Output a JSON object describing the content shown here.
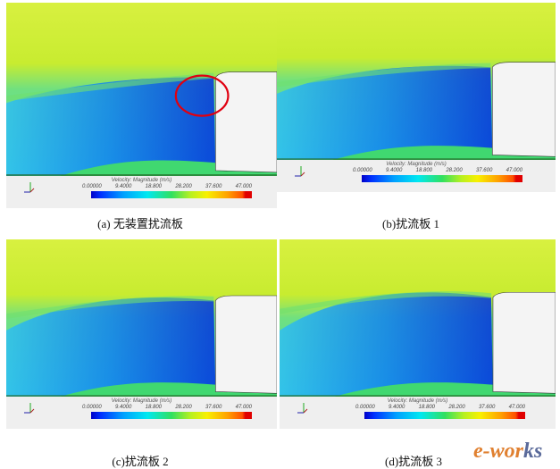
{
  "legend": {
    "title": "Velocity: Magnitude (m/s)",
    "ticks": [
      "0.00000",
      "9.4000",
      "18.800",
      "28.200",
      "37.600",
      "47.000"
    ],
    "range": [
      0,
      47
    ],
    "colormap": [
      "#0000c8",
      "#00a0ff",
      "#00e8f0",
      "#30e060",
      "#f8f000",
      "#ffa000",
      "#e00000"
    ]
  },
  "panels": [
    {
      "caption": "(a)  无装置扰流板",
      "highlight_circle": true
    },
    {
      "caption": "(b)扰流板 1",
      "highlight_circle": false
    },
    {
      "caption": "(c)扰流板 2",
      "highlight_circle": false
    },
    {
      "caption": "(d)扰流板 3",
      "highlight_circle": false
    }
  ],
  "watermark": {
    "text_a": "e-wor",
    "text_b": "k",
    "text_c": "s",
    "highlight_color": "#e08030"
  }
}
